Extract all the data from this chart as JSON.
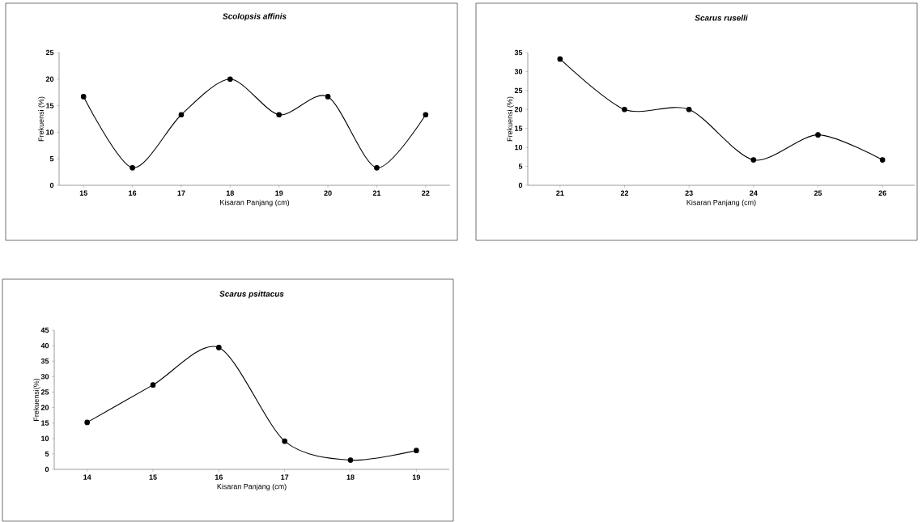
{
  "chart_data": [
    {
      "type": "line",
      "title": "Scolopsis affinis",
      "xlabel": "Kisaran Panjang (cm)",
      "ylabel": "Frekuensi (%)",
      "categories": [
        "15",
        "16",
        "17",
        "18",
        "19",
        "20",
        "21",
        "22"
      ],
      "values": [
        16.7,
        3.3,
        13.3,
        20,
        13.3,
        16.7,
        3.3,
        13.3
      ],
      "color": "#000000",
      "ylim": [
        0,
        25
      ],
      "yticks": [
        0,
        5,
        10,
        15,
        20,
        25
      ],
      "marker": "circle"
    },
    {
      "type": "line",
      "title": "Scarus ruselli",
      "xlabel": "Kisaran Panjang (cm)",
      "ylabel": "Frekuensi (%)",
      "categories": [
        "21",
        "22",
        "23",
        "24",
        "25",
        "26"
      ],
      "values": [
        33.3,
        20,
        20,
        6.7,
        13.3,
        6.7
      ],
      "color": "#000000",
      "ylim": [
        0,
        35
      ],
      "yticks": [
        0,
        5,
        10,
        15,
        20,
        25,
        30,
        35
      ],
      "marker": "circle"
    },
    {
      "type": "line",
      "title": "Scarus psittacus",
      "xlabel": "Kisaran Panjang (cm)",
      "ylabel": "Frekuensi(%)",
      "categories": [
        "14",
        "15",
        "16",
        "17",
        "18",
        "19"
      ],
      "values": [
        15.2,
        27.3,
        39.4,
        9.1,
        3.0,
        6.1
      ],
      "color": "#000000",
      "ylim": [
        0,
        45
      ],
      "yticks": [
        0,
        5,
        10,
        15,
        20,
        25,
        30,
        35,
        40,
        45
      ],
      "marker": "circle"
    }
  ]
}
